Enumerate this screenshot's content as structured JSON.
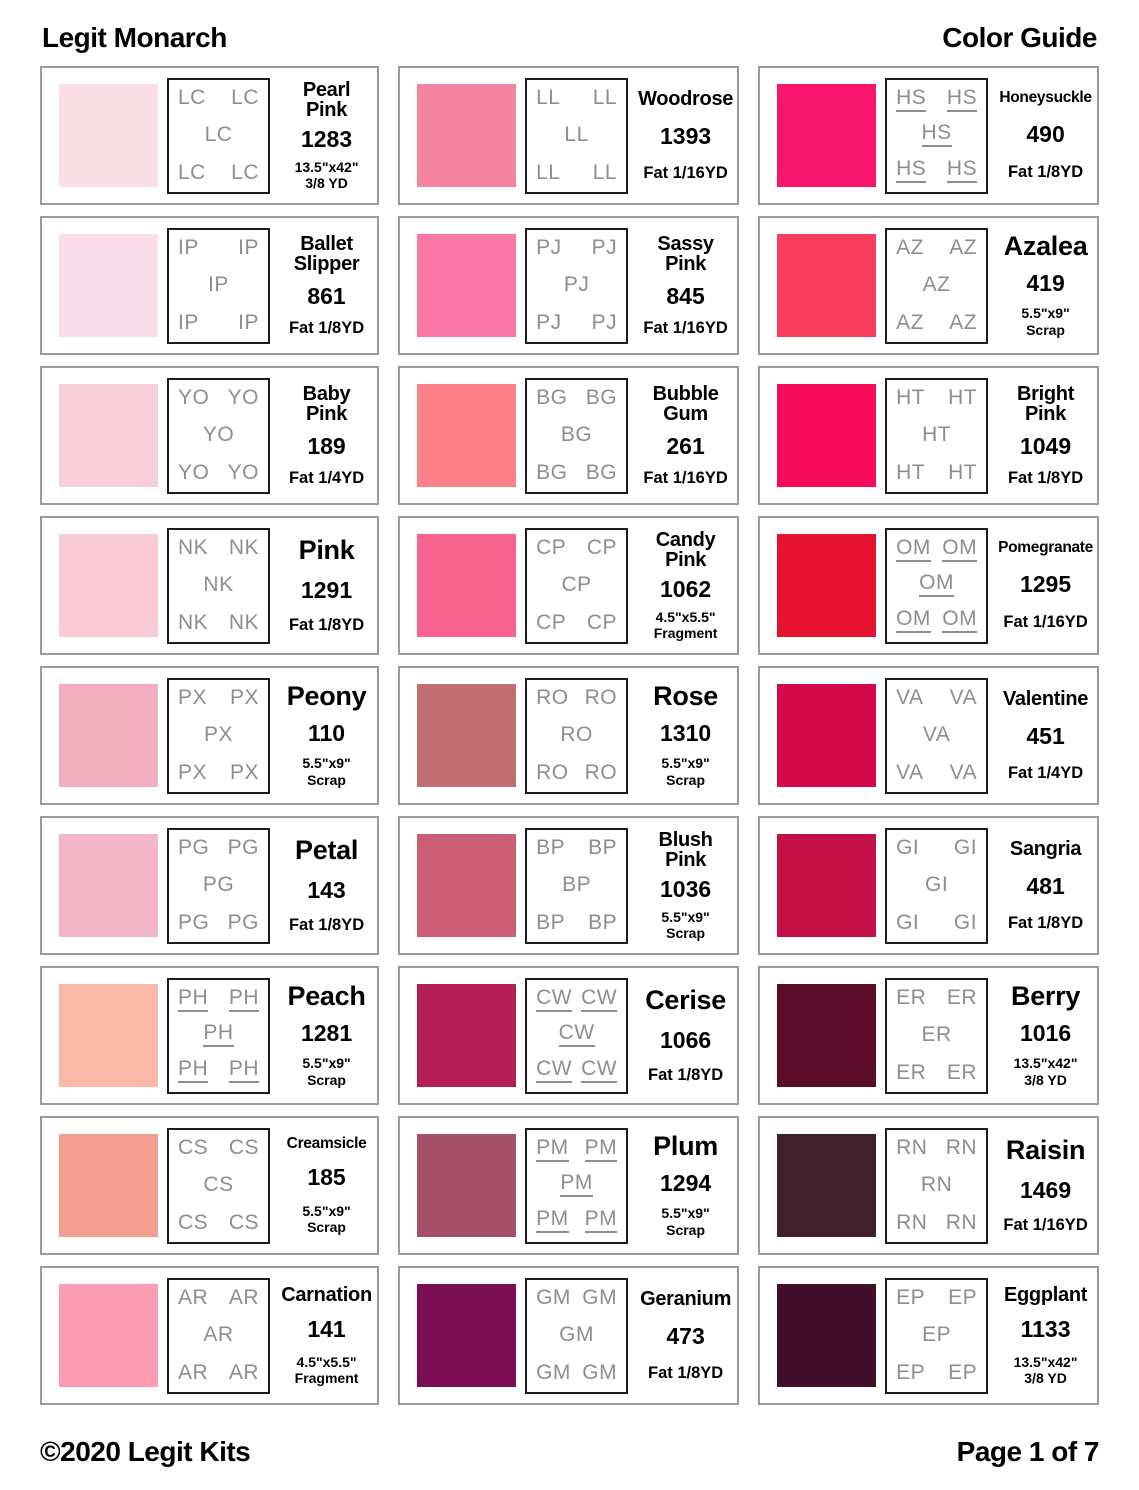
{
  "header": {
    "title": "Legit Monarch",
    "subtitle": "Color Guide"
  },
  "footer": {
    "copyright": "©2020 Legit Kits",
    "page": "Page 1 of 7"
  },
  "palette": {
    "code_gray": "#8e8e8e",
    "card_border": "#9b9b9b",
    "code_box_border": "#1c1c1c",
    "text": "#000000"
  },
  "cards": [
    {
      "name": "Pearl Pink",
      "number": "1283",
      "size": [
        "13.5\"x42\"",
        "3/8 YD"
      ],
      "code": "LC",
      "underline": false,
      "swatch": "#fbdfe7"
    },
    {
      "name": "Woodrose",
      "number": "1393",
      "size": [
        "Fat 1/16YD"
      ],
      "code": "LL",
      "underline": false,
      "swatch": "#f5849f"
    },
    {
      "name": "Honeysuckle",
      "number": "490",
      "size": [
        "Fat 1/8YD"
      ],
      "code": "HS",
      "underline": true,
      "swatch": "#f9176d"
    },
    {
      "name": "Ballet Slipper",
      "number": "861",
      "size": [
        "Fat 1/8YD"
      ],
      "code": "IP",
      "underline": false,
      "swatch": "#fadde8"
    },
    {
      "name": "Sassy Pink",
      "number": "845",
      "size": [
        "Fat 1/16YD"
      ],
      "code": "PJ",
      "underline": false,
      "swatch": "#f978a6"
    },
    {
      "name": "Azalea",
      "number": "419",
      "size": [
        "5.5\"x9\"",
        "Scrap"
      ],
      "code": "AZ",
      "underline": false,
      "swatch": "#f93d5c"
    },
    {
      "name": "Baby Pink",
      "number": "189",
      "size": [
        "Fat 1/4YD"
      ],
      "code": "YO",
      "underline": false,
      "swatch": "#f7cfdb"
    },
    {
      "name": "Bubble Gum",
      "number": "261",
      "size": [
        "Fat 1/16YD"
      ],
      "code": "BG",
      "underline": false,
      "swatch": "#fc8188"
    },
    {
      "name": "Bright Pink",
      "number": "1049",
      "size": [
        "Fat 1/8YD"
      ],
      "code": "HT",
      "underline": false,
      "swatch": "#f60b5a"
    },
    {
      "name": "Pink",
      "number": "1291",
      "size": [
        "Fat 1/8YD"
      ],
      "code": "NK",
      "underline": false,
      "swatch": "#f8cbd7"
    },
    {
      "name": "Candy Pink",
      "number": "1062",
      "size": [
        "4.5\"x5.5\"",
        "Fragment"
      ],
      "code": "CP",
      "underline": false,
      "swatch": "#f9638f"
    },
    {
      "name": "Pomegranate",
      "number": "1295",
      "size": [
        "Fat 1/16YD"
      ],
      "code": "OM",
      "underline": true,
      "swatch": "#e5132f"
    },
    {
      "name": "Peony",
      "number": "110",
      "size": [
        "5.5\"x9\"",
        "Scrap"
      ],
      "code": "PX",
      "underline": false,
      "swatch": "#f2afc0"
    },
    {
      "name": "Rose",
      "number": "1310",
      "size": [
        "5.5\"x9\"",
        "Scrap"
      ],
      "code": "RO",
      "underline": false,
      "swatch": "#c06d73"
    },
    {
      "name": "Valentine",
      "number": "451",
      "size": [
        "Fat 1/4YD"
      ],
      "code": "VA",
      "underline": false,
      "swatch": "#d2094a"
    },
    {
      "name": "Petal",
      "number": "143",
      "size": [
        "Fat 1/8YD"
      ],
      "code": "PG",
      "underline": false,
      "swatch": "#f3b5c8"
    },
    {
      "name": "Blush Pink",
      "number": "1036",
      "size": [
        "5.5\"x9\"",
        "Scrap"
      ],
      "code": "BP",
      "underline": false,
      "swatch": "#cb5d75"
    },
    {
      "name": "Sangria",
      "number": "481",
      "size": [
        "Fat 1/8YD"
      ],
      "code": "GI",
      "underline": false,
      "swatch": "#c20f45"
    },
    {
      "name": "Peach",
      "number": "1281",
      "size": [
        "5.5\"x9\"",
        "Scrap"
      ],
      "code": "PH",
      "underline": true,
      "swatch": "#fbbaa9"
    },
    {
      "name": "Cerise",
      "number": "1066",
      "size": [
        "Fat 1/8YD"
      ],
      "code": "CW",
      "underline": true,
      "swatch": "#b42056"
    },
    {
      "name": "Berry",
      "number": "1016",
      "size": [
        "13.5\"x42\"",
        "3/8 YD"
      ],
      "code": "ER",
      "underline": false,
      "swatch": "#5b0d29"
    },
    {
      "name": "Creamsicle",
      "number": "185",
      "size": [
        "5.5\"x9\"",
        "Scrap"
      ],
      "code": "CS",
      "underline": false,
      "swatch": "#f29e91"
    },
    {
      "name": "Plum",
      "number": "1294",
      "size": [
        "5.5\"x9\"",
        "Scrap"
      ],
      "code": "PM",
      "underline": true,
      "swatch": "#a45069"
    },
    {
      "name": "Raisin",
      "number": "1469",
      "size": [
        "Fat 1/16YD"
      ],
      "code": "RN",
      "underline": false,
      "swatch": "#42202b"
    },
    {
      "name": "Carnation",
      "number": "141",
      "size": [
        "4.5\"x5.5\"",
        "Fragment"
      ],
      "code": "AR",
      "underline": false,
      "swatch": "#fc9db4"
    },
    {
      "name": "Geranium",
      "number": "473",
      "size": [
        "Fat 1/8YD"
      ],
      "code": "GM",
      "underline": false,
      "swatch": "#7c0f53"
    },
    {
      "name": "Eggplant",
      "number": "1133",
      "size": [
        "13.5\"x42\"",
        "3/8 YD"
      ],
      "code": "EP",
      "underline": false,
      "swatch": "#410f2a"
    }
  ]
}
